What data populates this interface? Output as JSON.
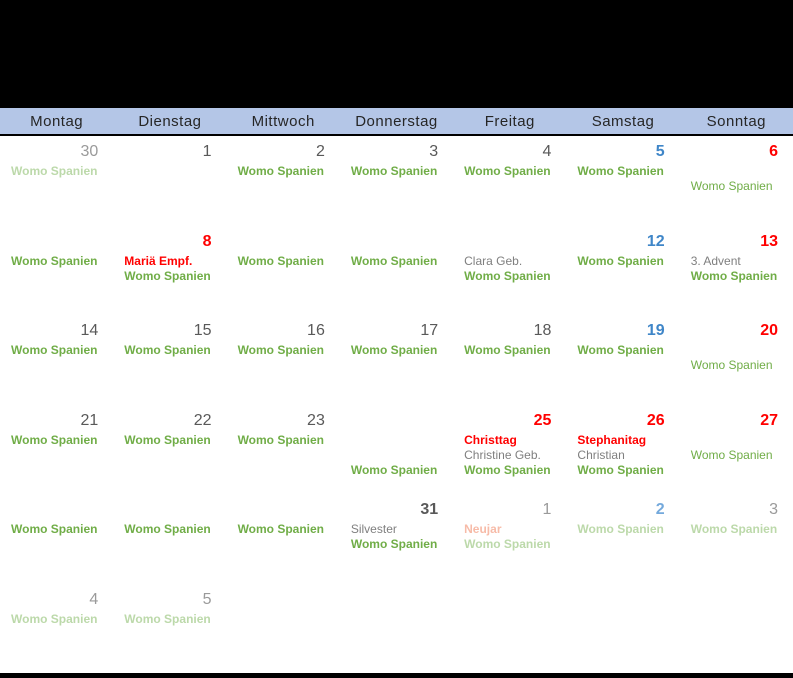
{
  "colors": {
    "header_bg": "#b4c6e7",
    "header_text": "#262626",
    "band": "#000000",
    "green": "#70ad47",
    "green_dim": "#bcd9aa",
    "red": "#ff0000",
    "red_dim": "#f7bba8",
    "gray_event": "#7f7f7f",
    "num_gray": "#595959",
    "num_gray_dim": "#9a9a9a",
    "num_blue": "#3f86c8",
    "num_blue_dim": "#74a9dc",
    "num_red": "#ff0000"
  },
  "header": {
    "weekdays": [
      "Montag",
      "Dienstag",
      "Mittwoch",
      "Donnerstag",
      "Freitag",
      "Samstag",
      "Sonntag"
    ]
  },
  "weeks": [
    [
      {
        "num": "30",
        "nc": "num_gray_dim",
        "nb": false,
        "events": [
          {
            "t": "Womo Spanien",
            "c": "green_dim",
            "b": true,
            "l": 1
          }
        ]
      },
      {
        "num": "1",
        "nc": "num_gray",
        "nb": false,
        "events": []
      },
      {
        "num": "2",
        "nc": "num_gray",
        "nb": false,
        "events": [
          {
            "t": "Womo Spanien",
            "c": "green",
            "b": true,
            "l": 1
          }
        ]
      },
      {
        "num": "3",
        "nc": "num_gray",
        "nb": false,
        "events": [
          {
            "t": "Womo Spanien",
            "c": "green",
            "b": true,
            "l": 1
          }
        ]
      },
      {
        "num": "4",
        "nc": "num_gray",
        "nb": false,
        "events": [
          {
            "t": "Womo Spanien",
            "c": "green",
            "b": true,
            "l": 1
          }
        ]
      },
      {
        "num": "5",
        "nc": "num_blue",
        "nb": true,
        "events": [
          {
            "t": "Womo Spanien",
            "c": "green",
            "b": true,
            "l": 1
          }
        ]
      },
      {
        "num": "6",
        "nc": "num_red",
        "nb": true,
        "events": [
          {
            "t": "Womo Spanien",
            "c": "green",
            "b": false,
            "l": 2
          }
        ]
      }
    ],
    [
      {
        "num": "",
        "nc": "num_gray",
        "nb": false,
        "events": [
          {
            "t": "Womo Spanien",
            "c": "green",
            "b": true,
            "l": 1
          }
        ]
      },
      {
        "num": "8",
        "nc": "num_red",
        "nb": true,
        "events": [
          {
            "t": "Mariä Empf.",
            "c": "red",
            "b": true,
            "l": 1
          },
          {
            "t": "Womo Spanien",
            "c": "green",
            "b": true,
            "l": 2
          }
        ]
      },
      {
        "num": "",
        "nc": "num_gray",
        "nb": false,
        "events": [
          {
            "t": "Womo Spanien",
            "c": "green",
            "b": true,
            "l": 1
          }
        ]
      },
      {
        "num": "",
        "nc": "num_gray",
        "nb": false,
        "events": [
          {
            "t": "Womo Spanien",
            "c": "green",
            "b": true,
            "l": 1
          }
        ]
      },
      {
        "num": "",
        "nc": "num_gray",
        "nb": false,
        "events": [
          {
            "t": "Clara Geb.",
            "c": "gray_event",
            "b": false,
            "l": 1
          },
          {
            "t": "Womo Spanien",
            "c": "green",
            "b": true,
            "l": 2
          }
        ]
      },
      {
        "num": "12",
        "nc": "num_blue",
        "nb": true,
        "events": [
          {
            "t": "Womo Spanien",
            "c": "green",
            "b": true,
            "l": 1
          }
        ]
      },
      {
        "num": "13",
        "nc": "num_red",
        "nb": true,
        "events": [
          {
            "t": "3. Advent",
            "c": "gray_event",
            "b": false,
            "l": 1
          },
          {
            "t": "Womo Spanien",
            "c": "green",
            "b": true,
            "l": 2
          }
        ]
      }
    ],
    [
      {
        "num": "14",
        "nc": "num_gray",
        "nb": false,
        "events": [
          {
            "t": "Womo Spanien",
            "c": "green",
            "b": true,
            "l": 1
          }
        ]
      },
      {
        "num": "15",
        "nc": "num_gray",
        "nb": false,
        "events": [
          {
            "t": "Womo Spanien",
            "c": "green",
            "b": true,
            "l": 1
          }
        ]
      },
      {
        "num": "16",
        "nc": "num_gray",
        "nb": false,
        "events": [
          {
            "t": "Womo Spanien",
            "c": "green",
            "b": true,
            "l": 1
          }
        ]
      },
      {
        "num": "17",
        "nc": "num_gray",
        "nb": false,
        "events": [
          {
            "t": "Womo Spanien",
            "c": "green",
            "b": true,
            "l": 1
          }
        ]
      },
      {
        "num": "18",
        "nc": "num_gray",
        "nb": false,
        "events": [
          {
            "t": "Womo Spanien",
            "c": "green",
            "b": true,
            "l": 1
          }
        ]
      },
      {
        "num": "19",
        "nc": "num_blue",
        "nb": true,
        "events": [
          {
            "t": "Womo Spanien",
            "c": "green",
            "b": true,
            "l": 1
          }
        ]
      },
      {
        "num": "20",
        "nc": "num_red",
        "nb": true,
        "events": [
          {
            "t": "Womo Spanien",
            "c": "green",
            "b": false,
            "l": 2
          }
        ]
      }
    ],
    [
      {
        "num": "21",
        "nc": "num_gray",
        "nb": false,
        "events": [
          {
            "t": "Womo Spanien",
            "c": "green",
            "b": true,
            "l": 1
          }
        ]
      },
      {
        "num": "22",
        "nc": "num_gray",
        "nb": false,
        "events": [
          {
            "t": "Womo Spanien",
            "c": "green",
            "b": true,
            "l": 1
          }
        ]
      },
      {
        "num": "23",
        "nc": "num_gray",
        "nb": false,
        "events": [
          {
            "t": "Womo Spanien",
            "c": "green",
            "b": true,
            "l": 1
          }
        ]
      },
      {
        "num": "",
        "nc": "num_gray",
        "nb": false,
        "events": [
          {
            "t": "Womo Spanien",
            "c": "green",
            "b": true,
            "l": 3
          }
        ]
      },
      {
        "num": "25",
        "nc": "num_red",
        "nb": true,
        "events": [
          {
            "t": "Christtag",
            "c": "red",
            "b": true,
            "l": 1
          },
          {
            "t": "Christine Geb.",
            "c": "gray_event",
            "b": false,
            "l": 2
          },
          {
            "t": "Womo Spanien",
            "c": "green",
            "b": true,
            "l": 3
          }
        ]
      },
      {
        "num": "26",
        "nc": "num_red",
        "nb": true,
        "events": [
          {
            "t": "Stephanitag",
            "c": "red",
            "b": true,
            "l": 1
          },
          {
            "t": "Christian",
            "c": "gray_event",
            "b": false,
            "l": 2
          },
          {
            "t": "Womo Spanien",
            "c": "green",
            "b": true,
            "l": 3
          }
        ]
      },
      {
        "num": "27",
        "nc": "num_red",
        "nb": true,
        "events": [
          {
            "t": "Womo Spanien",
            "c": "green",
            "b": false,
            "l": 2
          }
        ]
      }
    ],
    [
      {
        "num": "",
        "nc": "num_gray",
        "nb": false,
        "events": [
          {
            "t": "Womo Spanien",
            "c": "green",
            "b": true,
            "l": 1
          }
        ]
      },
      {
        "num": "",
        "nc": "num_gray",
        "nb": false,
        "events": [
          {
            "t": "Womo Spanien",
            "c": "green",
            "b": true,
            "l": 1
          }
        ]
      },
      {
        "num": "",
        "nc": "num_gray",
        "nb": false,
        "events": [
          {
            "t": "Womo Spanien",
            "c": "green",
            "b": true,
            "l": 1
          }
        ]
      },
      {
        "num": "31",
        "nc": "num_gray",
        "nb": true,
        "events": [
          {
            "t": "Silvester",
            "c": "gray_event",
            "b": false,
            "l": 1
          },
          {
            "t": "Womo Spanien",
            "c": "green",
            "b": true,
            "l": 2
          }
        ]
      },
      {
        "num": "1",
        "nc": "num_gray_dim",
        "nb": false,
        "events": [
          {
            "t": "Neujar",
            "c": "red_dim",
            "b": true,
            "l": 1
          },
          {
            "t": "Womo Spanien",
            "c": "green_dim",
            "b": true,
            "l": 2
          }
        ]
      },
      {
        "num": "2",
        "nc": "num_blue_dim",
        "nb": true,
        "events": [
          {
            "t": "Womo Spanien",
            "c": "green_dim",
            "b": true,
            "l": 1
          }
        ]
      },
      {
        "num": "3",
        "nc": "num_gray_dim",
        "nb": false,
        "events": [
          {
            "t": "Womo Spanien",
            "c": "green_dim",
            "b": true,
            "l": 1
          }
        ]
      }
    ],
    [
      {
        "num": "4",
        "nc": "num_gray_dim",
        "nb": false,
        "events": [
          {
            "t": "Womo Spanien",
            "c": "green_dim",
            "b": true,
            "l": 1
          }
        ]
      },
      {
        "num": "5",
        "nc": "num_gray_dim",
        "nb": false,
        "events": [
          {
            "t": "Womo Spanien",
            "c": "green_dim",
            "b": true,
            "l": 1
          }
        ]
      },
      {
        "num": "",
        "nc": "num_gray",
        "nb": false,
        "events": []
      },
      {
        "num": "",
        "nc": "num_gray",
        "nb": false,
        "events": []
      },
      {
        "num": "",
        "nc": "num_gray",
        "nb": false,
        "events": []
      },
      {
        "num": "",
        "nc": "num_gray",
        "nb": false,
        "events": []
      },
      {
        "num": "",
        "nc": "num_gray",
        "nb": false,
        "events": []
      }
    ]
  ]
}
